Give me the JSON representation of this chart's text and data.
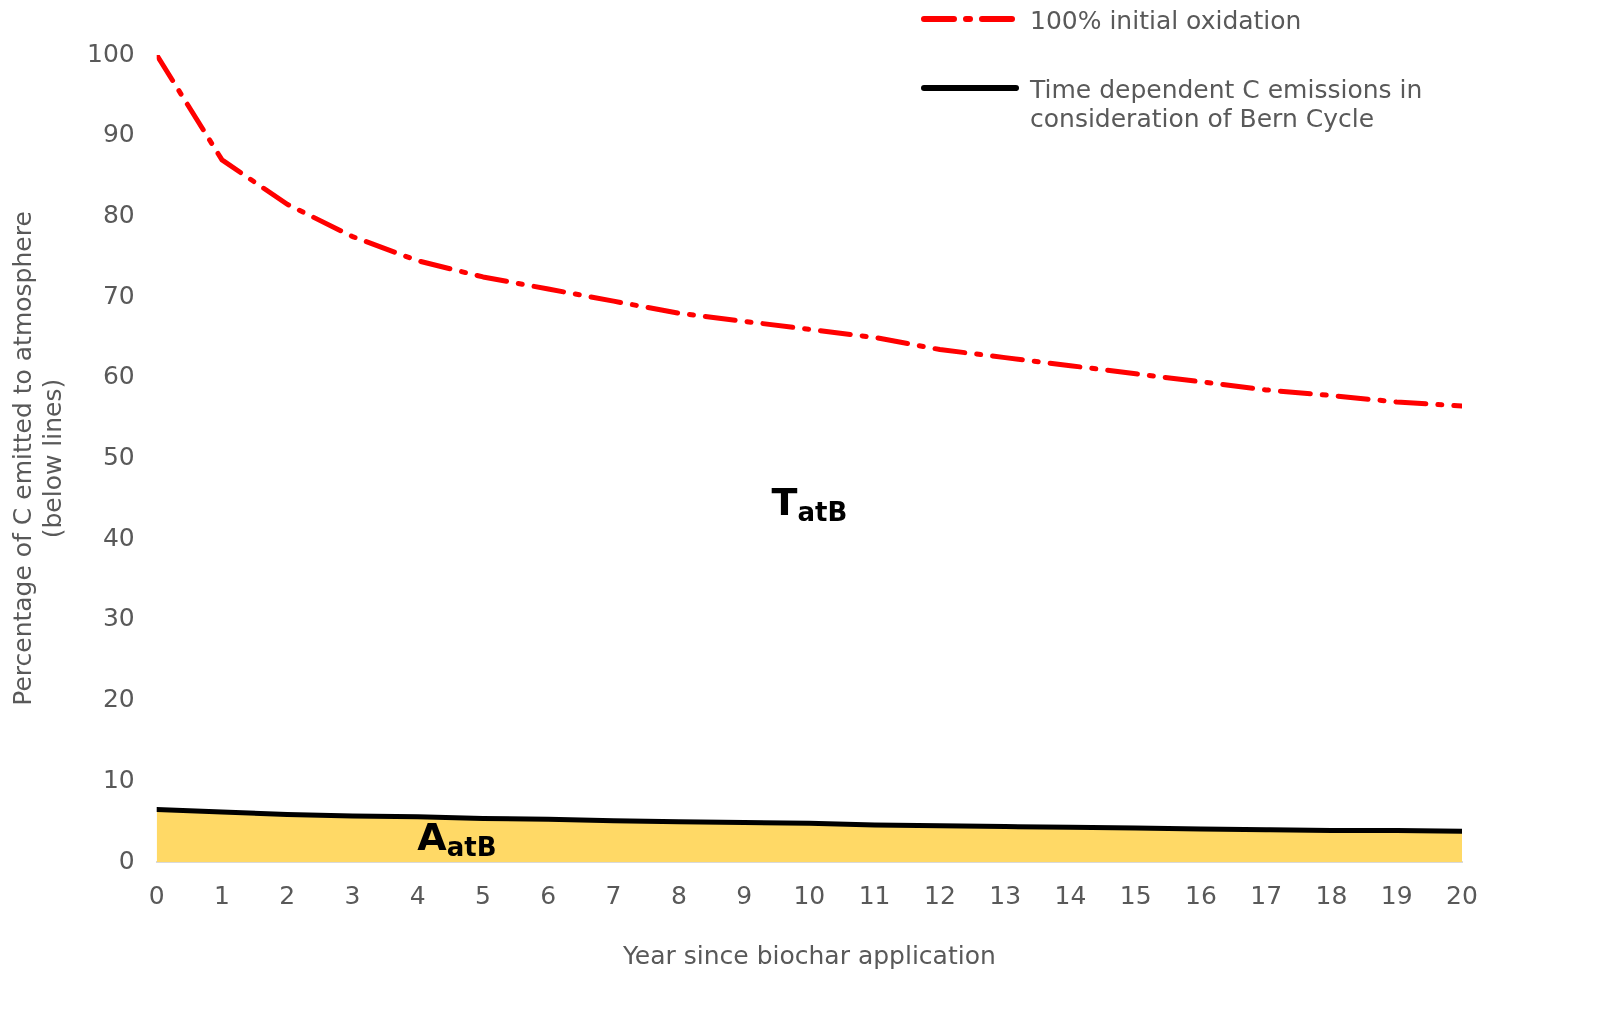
{
  "chart_data": {
    "type": "line",
    "xlabel": "Year since biochar application",
    "ylabel": "Percentage of C emitted to atmosphere\n(below lines)",
    "x": [
      0,
      1,
      2,
      3,
      4,
      5,
      6,
      7,
      8,
      9,
      10,
      11,
      12,
      13,
      14,
      15,
      16,
      17,
      18,
      19,
      20
    ],
    "xlim": [
      0,
      20
    ],
    "xticks": [
      0,
      1,
      2,
      3,
      4,
      5,
      6,
      7,
      8,
      9,
      10,
      11,
      12,
      13,
      14,
      15,
      16,
      17,
      18,
      19,
      20
    ],
    "ylim": [
      0,
      100
    ],
    "yticks": [
      0,
      10,
      20,
      30,
      40,
      50,
      60,
      70,
      80,
      90,
      100
    ],
    "grid": false,
    "legend": "top right",
    "marker": "none",
    "series": [
      {
        "name": "100% initial oxidation",
        "color": "#ff0000",
        "line_style": "dashed",
        "values": [
          100,
          87,
          81.5,
          77.5,
          74.5,
          72.5,
          71,
          69.5,
          68,
          67,
          66,
          65,
          63.5,
          62.5,
          61.5,
          60.5,
          59.5,
          58.5,
          57.8,
          57,
          56.5
        ]
      },
      {
        "name": "Time dependent C emissions in consideration of Bern Cycle",
        "type": "area",
        "color": "#000000",
        "line_style": "solid",
        "values": [
          6.5,
          6.2,
          5.9,
          5.7,
          5.6,
          5.4,
          5.3,
          5.1,
          5,
          4.9,
          4.8,
          4.6,
          4.5,
          4.4,
          4.3,
          4.2,
          4.1,
          4,
          3.9,
          3.9,
          3.8
        ]
      }
    ],
    "annotations": [
      "T$_{atB}$",
      "A$_{atB}$"
    ]
  }
}
